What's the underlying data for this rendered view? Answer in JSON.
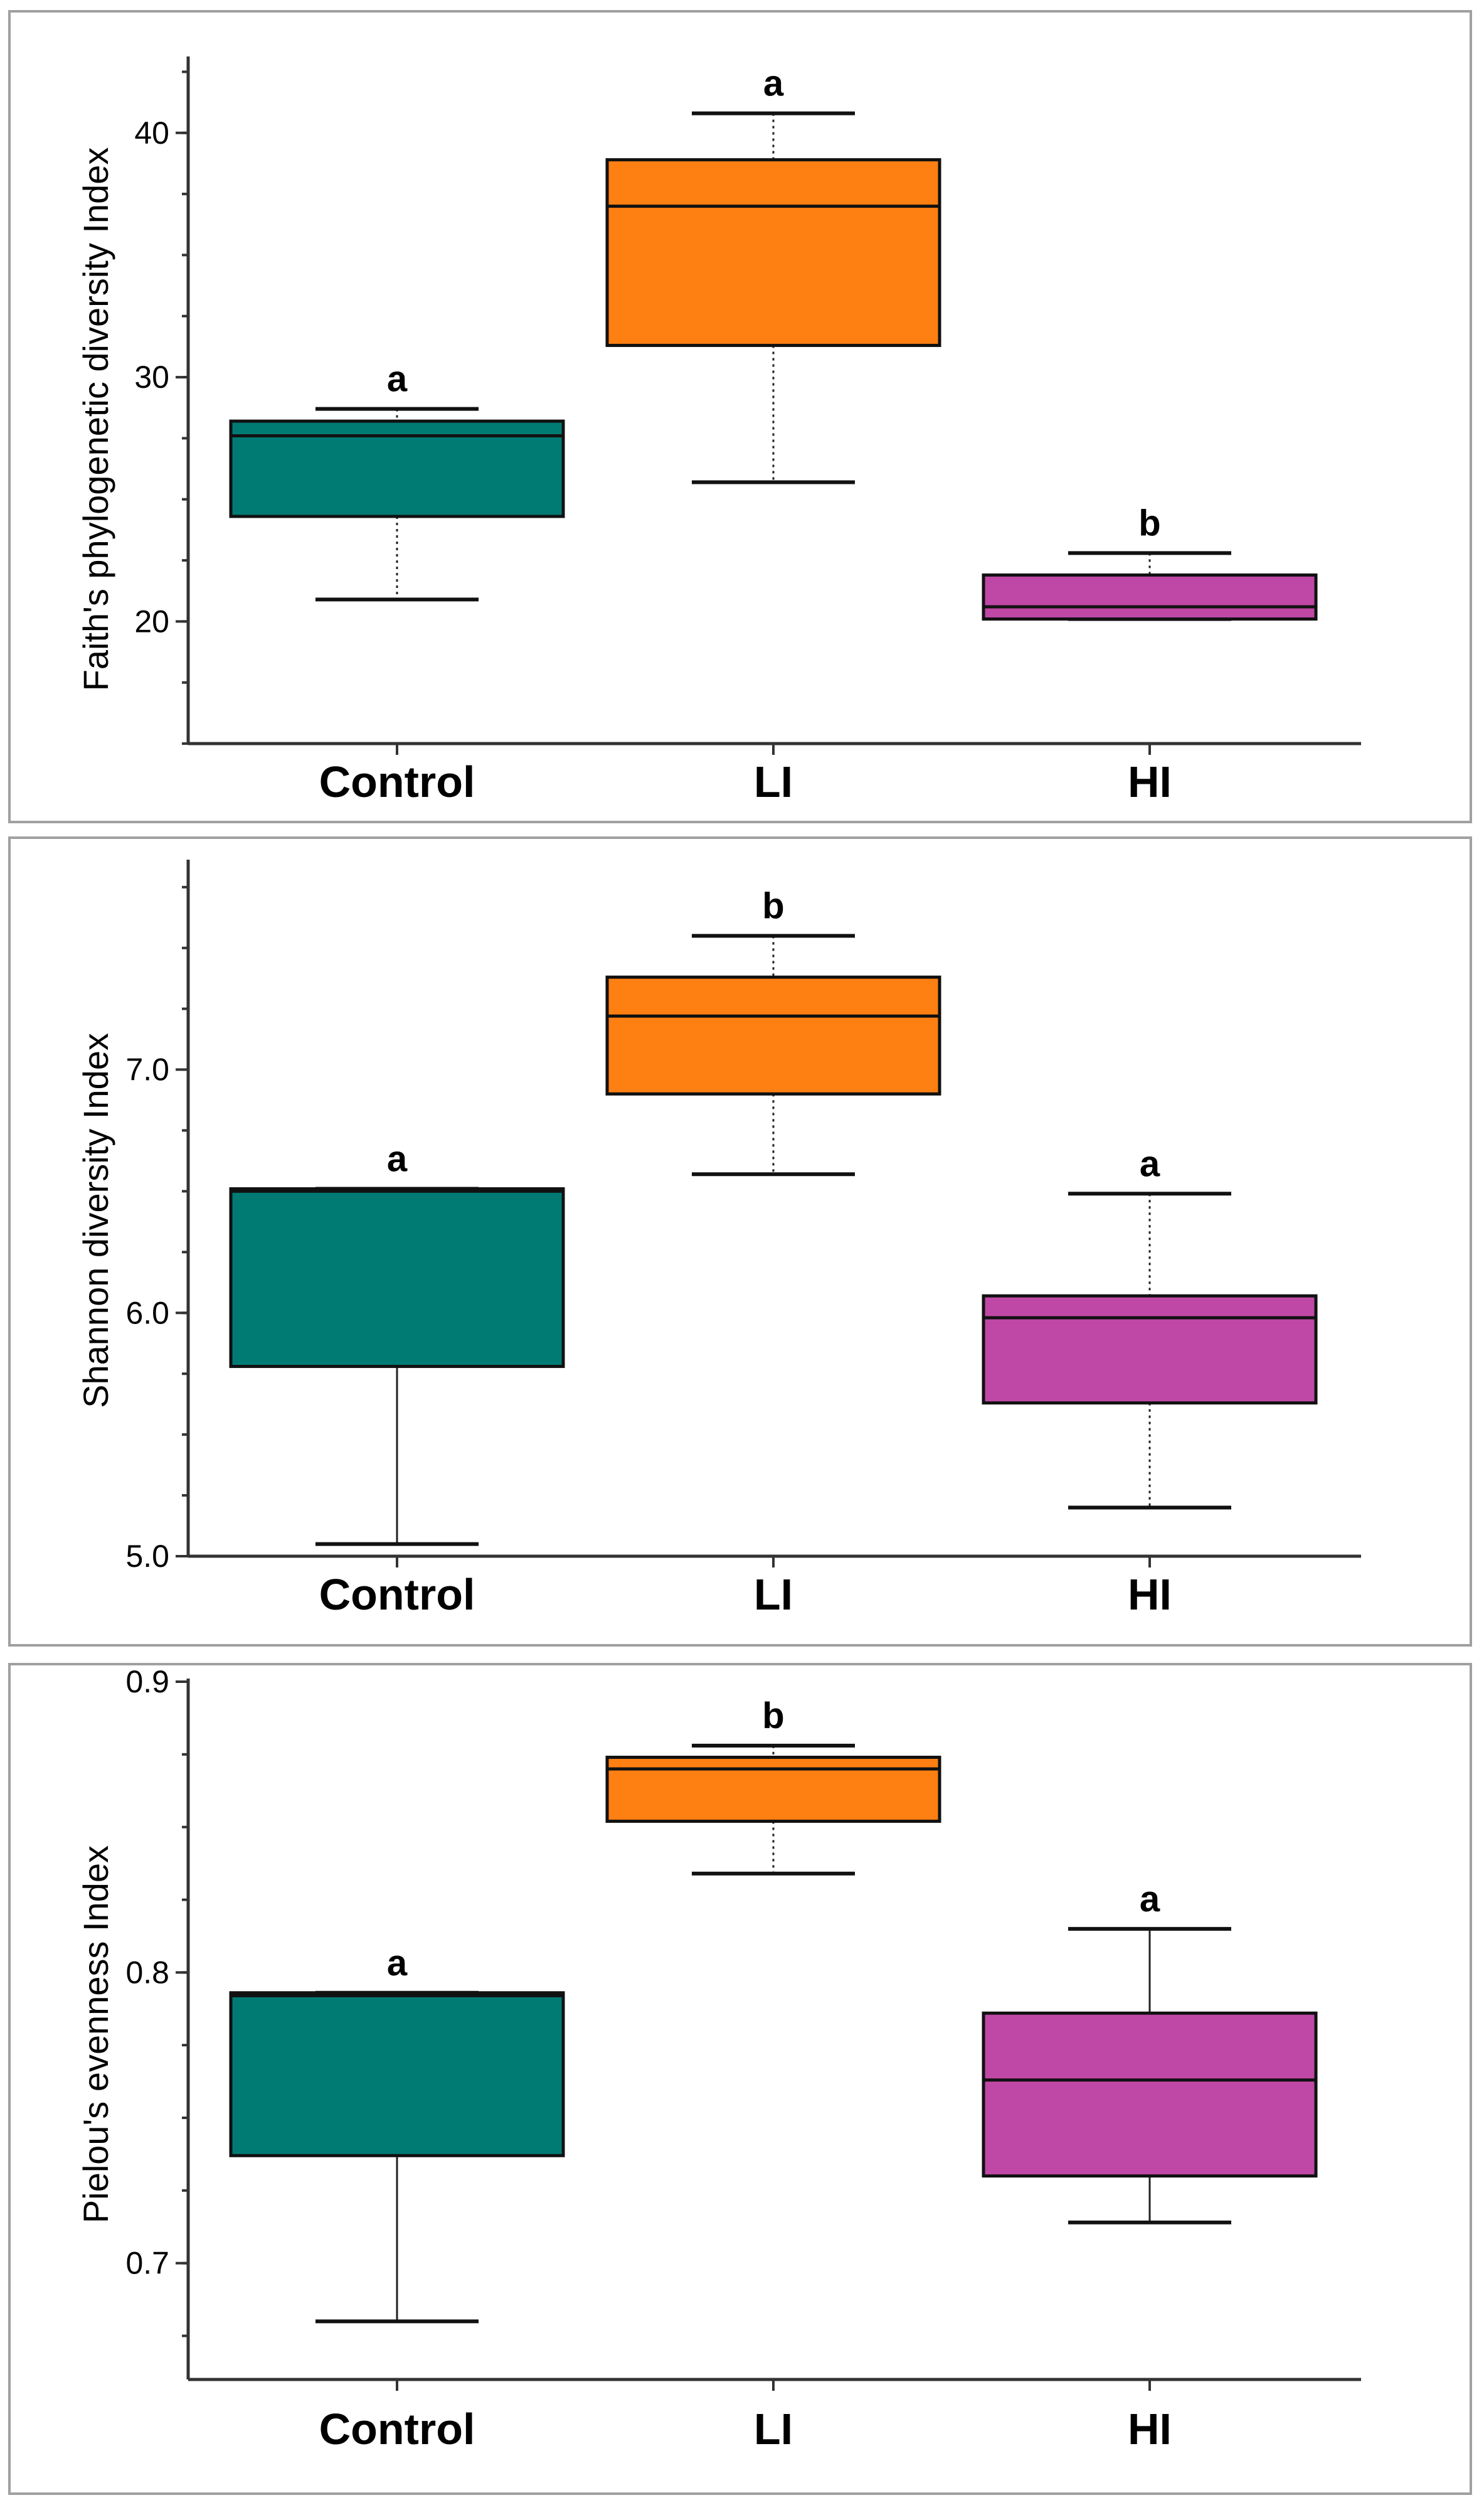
{
  "chart_data": [
    {
      "type": "box",
      "ylabel": "Faith's phylogenetic diversity Index",
      "ylim": [
        15,
        43
      ],
      "yticks": [
        20,
        30,
        40
      ],
      "ytick_labels": [
        "20",
        "30",
        "40"
      ],
      "categories": [
        "Control",
        "LI",
        "HI"
      ],
      "colors": [
        "#007b74",
        "#fe7f12",
        "#bf48a6"
      ],
      "boxes": [
        {
          "group": "Control",
          "whisker_low": 20.9,
          "q1": 24.3,
          "median": 27.6,
          "q3": 28.2,
          "whisker_high": 28.7,
          "significance": "a"
        },
        {
          "group": "LI",
          "whisker_low": 25.7,
          "q1": 31.3,
          "median": 37.0,
          "q3": 38.9,
          "whisker_high": 40.8,
          "significance": "a"
        },
        {
          "group": "HI",
          "whisker_low": 20.1,
          "q1": 20.1,
          "median": 20.6,
          "q3": 21.9,
          "whisker_high": 22.8,
          "significance": "b"
        }
      ]
    },
    {
      "type": "box",
      "ylabel": "Shannon diversity Index",
      "ylim": [
        5.0,
        7.85
      ],
      "yticks": [
        5.0,
        6.0,
        7.0
      ],
      "ytick_labels": [
        "5.0",
        "6.0",
        "7.0"
      ],
      "categories": [
        "Control",
        "LI",
        "HI"
      ],
      "colors": [
        "#007b74",
        "#fe7f12",
        "#bf48a6"
      ],
      "boxes": [
        {
          "group": "Control",
          "whisker_low": 5.05,
          "q1": 5.78,
          "median": 6.5,
          "q3": 6.51,
          "whisker_high": 6.51,
          "significance": "a"
        },
        {
          "group": "LI",
          "whisker_low": 6.57,
          "q1": 6.9,
          "median": 7.22,
          "q3": 7.38,
          "whisker_high": 7.55,
          "significance": "b"
        },
        {
          "group": "HI",
          "whisker_low": 5.2,
          "q1": 5.63,
          "median": 5.98,
          "q3": 6.07,
          "whisker_high": 6.49,
          "significance": "a"
        }
      ]
    },
    {
      "type": "box",
      "ylabel": "Pielou's evenness Index",
      "ylim": [
        0.66,
        0.9
      ],
      "yticks": [
        0.7,
        0.8,
        0.9
      ],
      "ytick_labels": [
        "0.7",
        "0.8",
        "0.9"
      ],
      "categories": [
        "Control",
        "LI",
        "HI"
      ],
      "colors": [
        "#007b74",
        "#fe7f12",
        "#bf48a6"
      ],
      "boxes": [
        {
          "group": "Control",
          "whisker_low": 0.68,
          "q1": 0.737,
          "median": 0.792,
          "q3": 0.793,
          "whisker_high": 0.793,
          "significance": "a"
        },
        {
          "group": "LI",
          "whisker_low": 0.834,
          "q1": 0.852,
          "median": 0.87,
          "q3": 0.874,
          "whisker_high": 0.878,
          "significance": "b"
        },
        {
          "group": "HI",
          "whisker_low": 0.714,
          "q1": 0.73,
          "median": 0.763,
          "q3": 0.786,
          "whisker_high": 0.815,
          "significance": "a"
        }
      ]
    }
  ]
}
